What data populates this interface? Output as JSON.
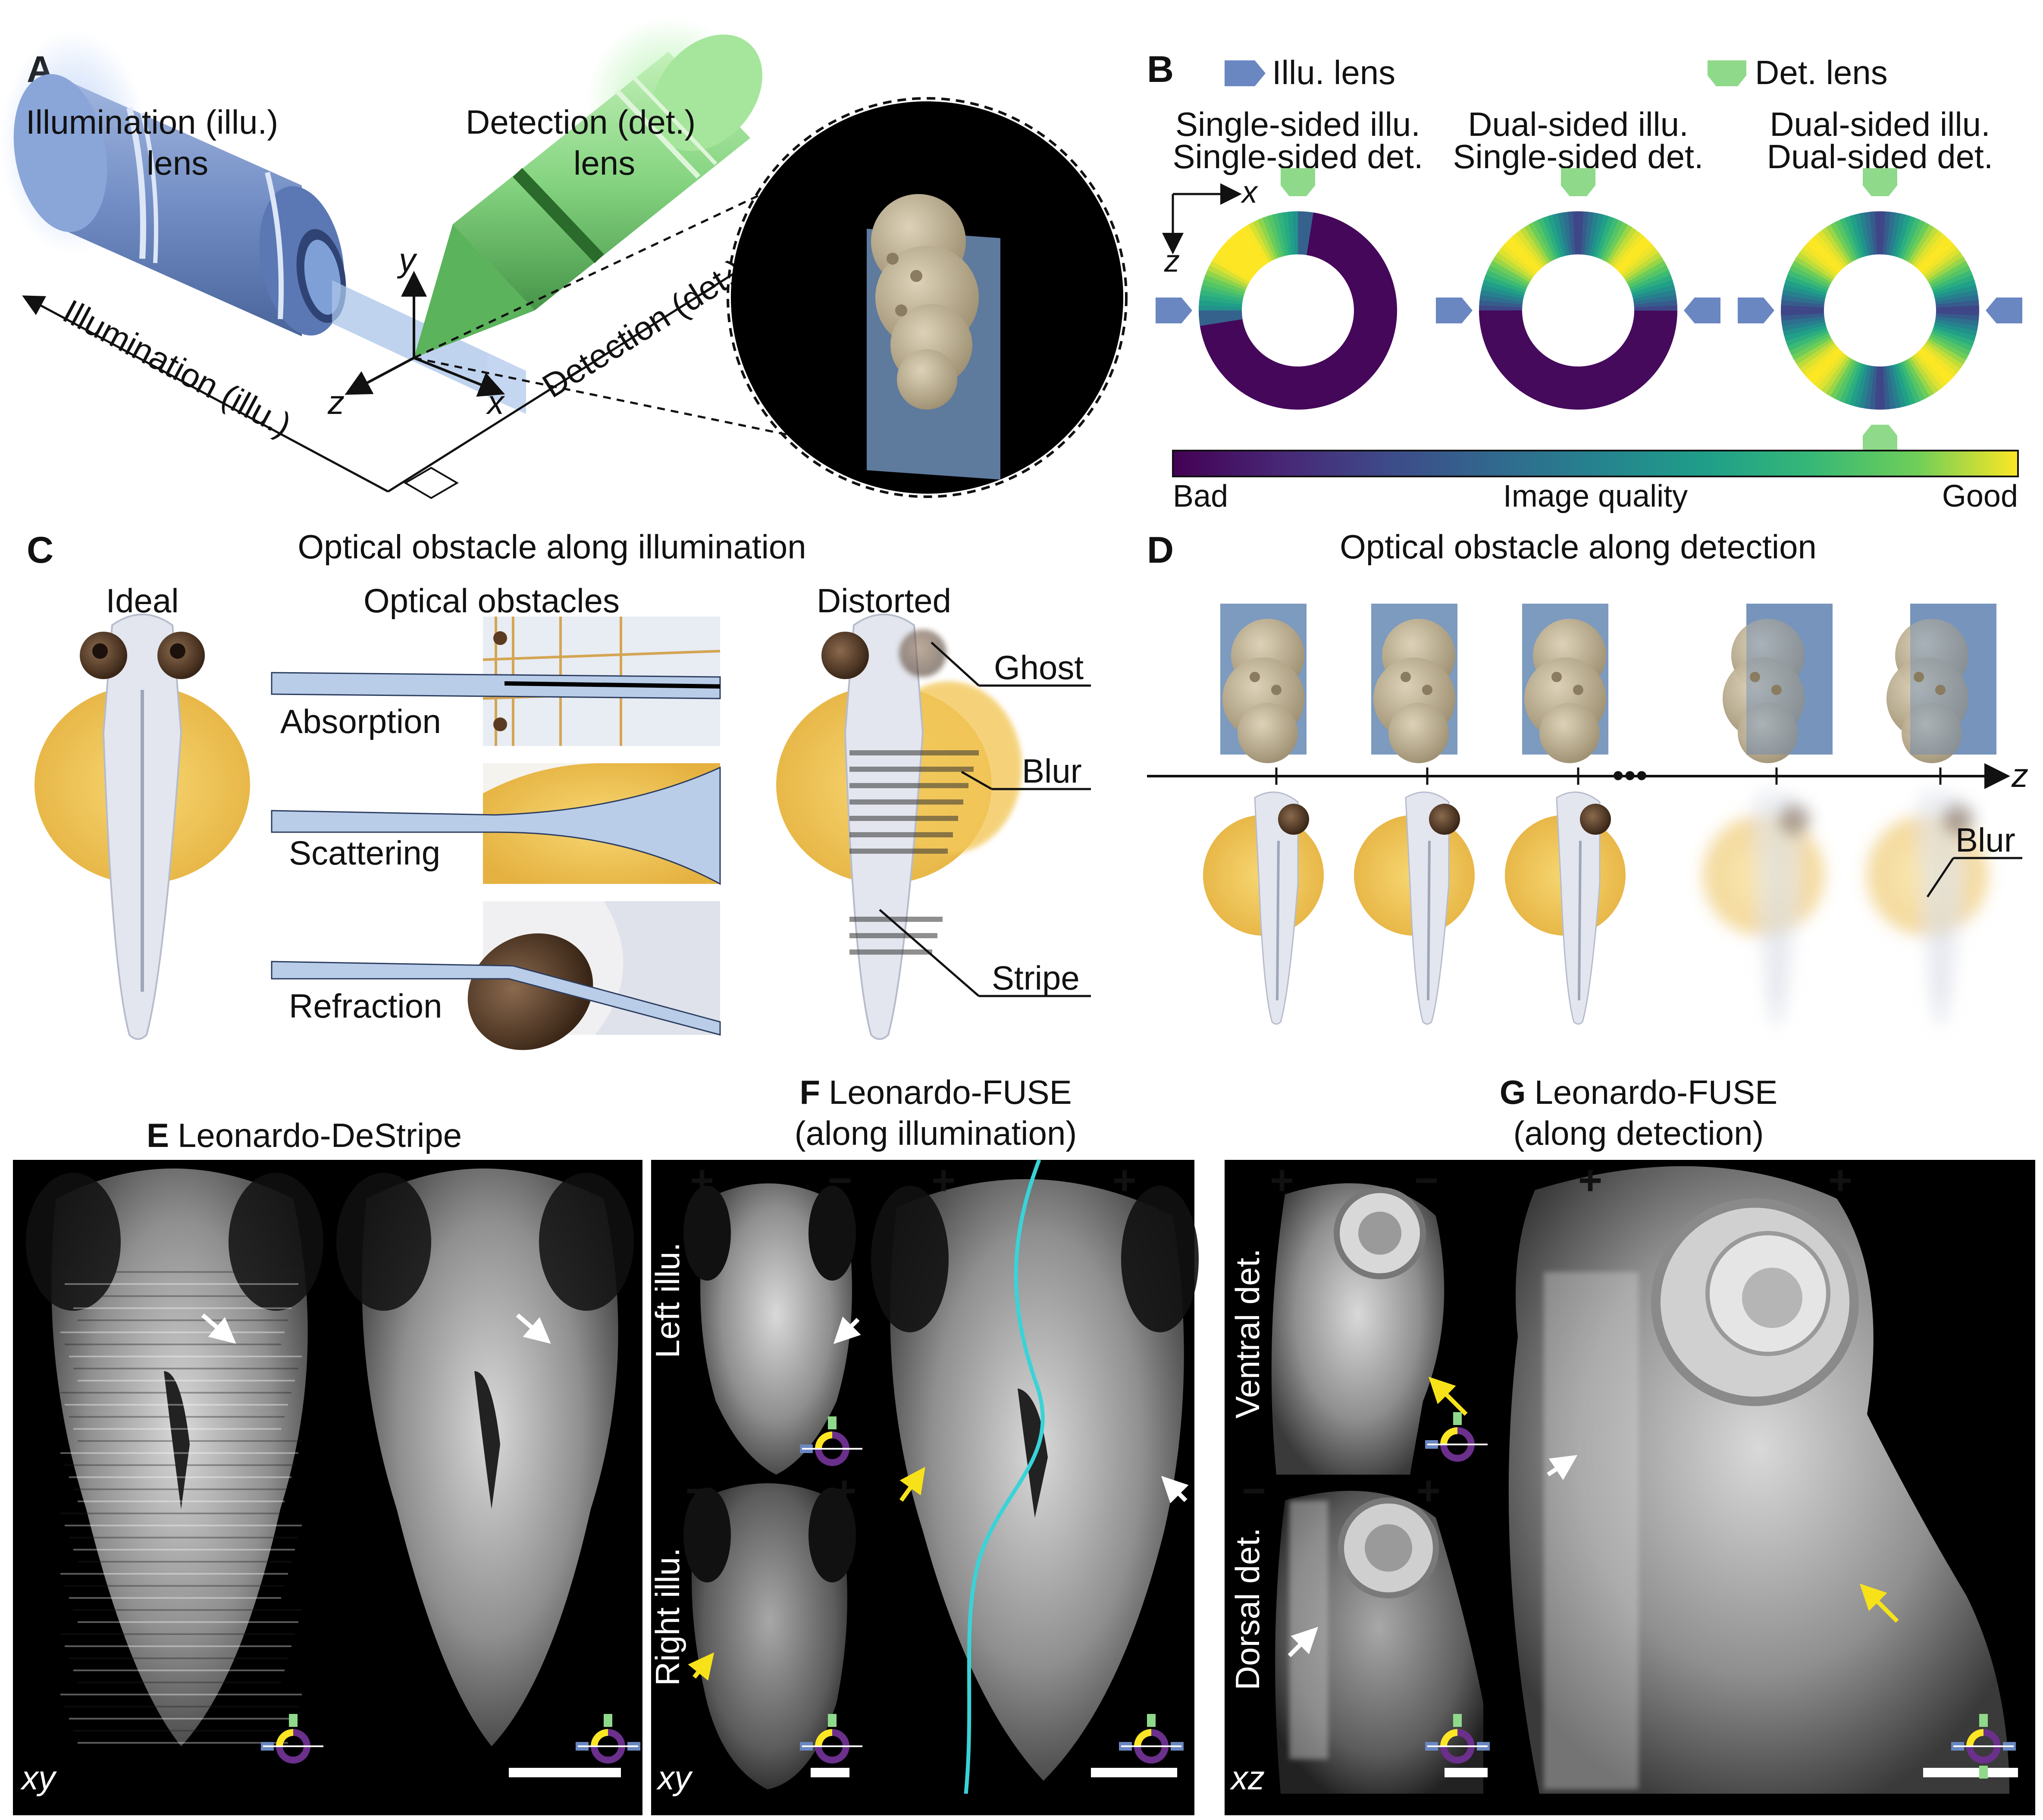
{
  "colors": {
    "illu_lens": "#6a87c1",
    "det_lens": "#8fd98a",
    "viridis_bad": "#440154",
    "viridis_mid": "#21918c",
    "viridis_good": "#fde725",
    "yolk": "#f3c85a",
    "embryo": "#c7b99a",
    "sheet": "#6f8fb8",
    "cyan_line": "#39d3d8",
    "plus_green": "#22cc22",
    "minus_red": "#e02020",
    "arrow_yellow": "#f7e21a"
  },
  "panelA": {
    "letter": "A",
    "illu_lens_line1": "Illumination (illu.)",
    "illu_lens_line2": "lens",
    "det_lens_line1": "Detection (det.)",
    "det_lens_line2": "lens",
    "illu_axis": "Illumination (illu.)",
    "det_axis": "Detection (det.)",
    "axis_x": "x",
    "axis_y": "y",
    "axis_z": "z"
  },
  "panelB": {
    "letter": "B",
    "legend_illu": "Illu. lens",
    "legend_det": "Det. lens",
    "col1_line1": "Single-sided illu.",
    "col1_line2": "Single-sided det.",
    "col2_line1": "Dual-sided illu.",
    "col2_line2": "Single-sided det.",
    "col3_line1": "Dual-sided illu.",
    "col3_line2": "Dual-sided det.",
    "axis_x": "x",
    "axis_z": "z",
    "colorbar_left": "Bad",
    "colorbar_center": "Image quality",
    "colorbar_right": "Good"
  },
  "panelC": {
    "letter": "C",
    "title": "Optical obstacle along illumination",
    "ideal": "Ideal",
    "obstacles": "Optical obstacles",
    "distorted": "Distorted",
    "absorption": "Absorption",
    "scattering": "Scattering",
    "refraction": "Refraction",
    "ghost": "Ghost",
    "blur": "Blur",
    "stripe": "Stripe"
  },
  "panelD": {
    "letter": "D",
    "title": "Optical obstacle along detection",
    "ellipsis": "•••",
    "axis_z": "z",
    "blur": "Blur"
  },
  "panelE": {
    "letter": "E",
    "title": "Leonardo-DeStripe",
    "plane": "xy"
  },
  "panelF": {
    "letter": "F",
    "title_line1": "Leonardo-FUSE",
    "title_line2": "(along illumination)",
    "left_illu": "Left illu.",
    "right_illu": "Right illu.",
    "plus": "+",
    "minus": "−",
    "plane": "xy"
  },
  "panelG": {
    "letter": "G",
    "title_line1": "Leonardo-FUSE",
    "title_line2": "(along detection)",
    "ventral": "Ventral det.",
    "dorsal": "Dorsal det.",
    "plus": "+",
    "minus": "−",
    "plane": "xz"
  }
}
